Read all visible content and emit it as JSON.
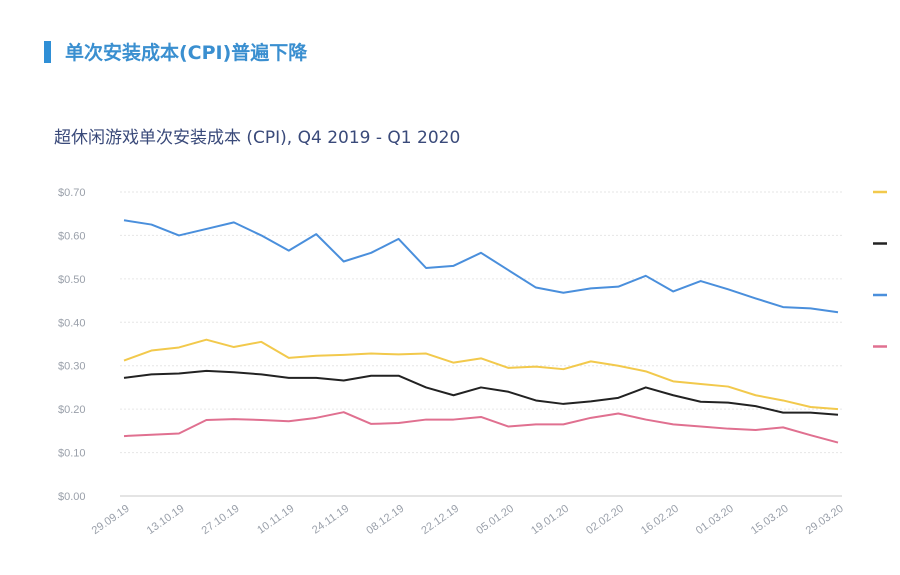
{
  "header": {
    "title": "单次安装成本(CPI)普遍下降",
    "accent": "#2f8fd6"
  },
  "chart_data": {
    "type": "line",
    "title": "超休闲游戏单次安装成本 (CPI), Q4 2019 - Q1 2020",
    "xlabel": "",
    "ylabel": "",
    "ylim": [
      0,
      0.7
    ],
    "yticks": [
      "$0.00",
      "$0.10",
      "$0.20",
      "$0.30",
      "$0.40",
      "$0.50",
      "$0.60",
      "$0.70"
    ],
    "x": [
      "29.09.19",
      "06.10.19",
      "13.10.19",
      "20.10.19",
      "27.10.19",
      "03.11.19",
      "10.11.19",
      "17.11.19",
      "24.11.19",
      "01.12.19",
      "08.12.19",
      "15.12.19",
      "22.12.19",
      "29.12.19",
      "05.01.20",
      "12.01.20",
      "19.01.20",
      "26.01.20",
      "02.02.20",
      "09.02.20",
      "16.02.20",
      "23.02.20",
      "01.03.20",
      "08.03.20",
      "15.03.20",
      "22.03.20",
      "29.03.20"
    ],
    "xtick_labels": [
      "29.09.19",
      "13.10.19",
      "27.10.19",
      "10.11.19",
      "24.11.19",
      "08.12.19",
      "22.12.19",
      "05.01.20",
      "19.01.20",
      "02.02.20",
      "16.02.20",
      "01.03.20",
      "15.03.20",
      "29.03.20"
    ],
    "grid": true,
    "legend_placement": "right",
    "series": [
      {
        "color": "#f2c94c",
        "values": [
          0.312,
          0.335,
          0.342,
          0.36,
          0.343,
          0.355,
          0.318,
          0.323,
          0.325,
          0.328,
          0.326,
          0.328,
          0.307,
          0.317,
          0.295,
          0.298,
          0.292,
          0.31,
          0.3,
          0.287,
          0.264,
          0.258,
          0.252,
          0.232,
          0.22,
          0.205,
          0.2
        ]
      },
      {
        "color": "#222222",
        "values": [
          0.272,
          0.28,
          0.282,
          0.288,
          0.285,
          0.28,
          0.272,
          0.272,
          0.266,
          0.277,
          0.277,
          0.25,
          0.232,
          0.25,
          0.24,
          0.22,
          0.212,
          0.218,
          0.226,
          0.25,
          0.232,
          0.217,
          0.215,
          0.207,
          0.192,
          0.192,
          0.187
        ]
      },
      {
        "color": "#4a8fdc",
        "values": [
          0.635,
          0.625,
          0.6,
          0.615,
          0.63,
          0.6,
          0.565,
          0.603,
          0.54,
          0.56,
          0.592,
          0.525,
          0.53,
          0.56,
          0.52,
          0.48,
          0.468,
          0.478,
          0.482,
          0.507,
          0.471,
          0.495,
          0.476,
          0.455,
          0.435,
          0.432,
          0.423
        ]
      },
      {
        "color": "#e07090",
        "values": [
          0.138,
          0.141,
          0.144,
          0.175,
          0.177,
          0.175,
          0.172,
          0.18,
          0.193,
          0.166,
          0.168,
          0.176,
          0.176,
          0.182,
          0.16,
          0.165,
          0.165,
          0.18,
          0.19,
          0.176,
          0.165,
          0.16,
          0.155,
          0.152,
          0.158,
          0.14,
          0.123
        ]
      }
    ]
  }
}
